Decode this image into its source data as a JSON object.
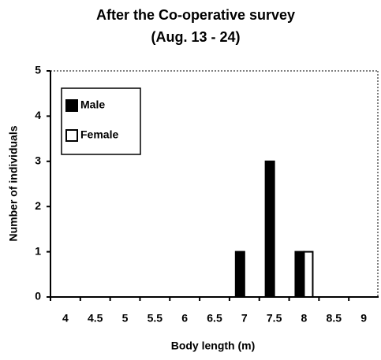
{
  "chart_data": {
    "type": "bar",
    "title": "After the Co-operative survey",
    "subtitle": "(Aug. 13 - 24)",
    "x_label": "Body length (m)",
    "y_label": "Number of individuals",
    "categories": [
      "4",
      "4.5",
      "5",
      "5.5",
      "6",
      "6.5",
      "7",
      "7.5",
      "8",
      "8.5",
      "9"
    ],
    "series": [
      {
        "name": "Male",
        "color": "#000000",
        "values": [
          0,
          0,
          0,
          0,
          0,
          0,
          1,
          3,
          1,
          0,
          0
        ]
      },
      {
        "name": "Female",
        "color": "#ffffff",
        "values": [
          0,
          0,
          0,
          0,
          0,
          0,
          0,
          0,
          1,
          0,
          0
        ]
      }
    ],
    "ylim": [
      0,
      5
    ],
    "yticks": [
      0,
      1,
      2,
      3,
      4,
      5
    ],
    "legend": "upper left",
    "grid": false
  }
}
